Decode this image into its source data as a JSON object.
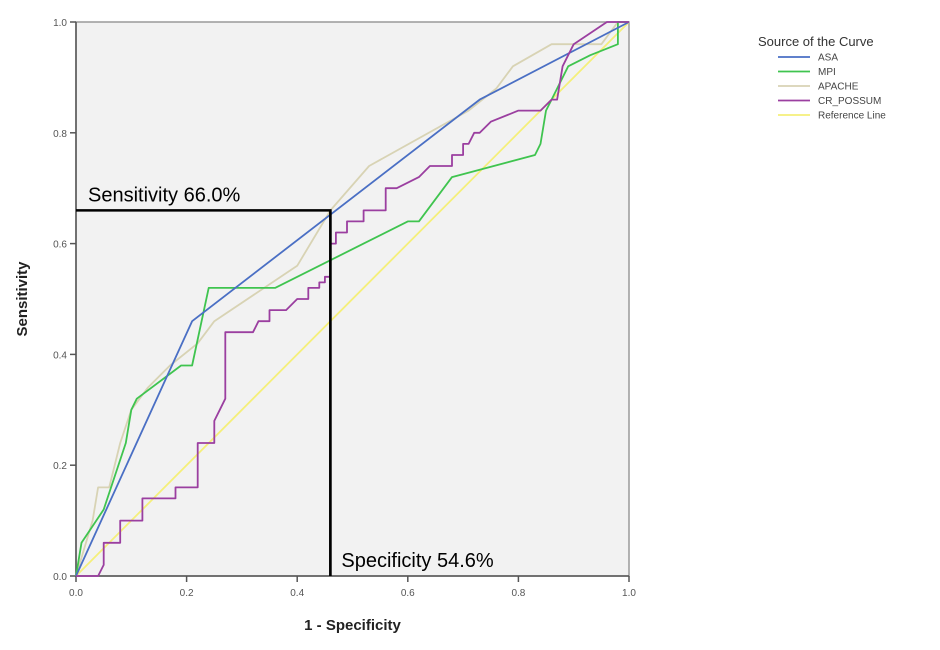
{
  "chart_data": {
    "type": "line",
    "title": "",
    "xlabel": "1 - Specificity",
    "ylabel": "Sensitivity",
    "xlim": [
      0,
      1
    ],
    "ylim": [
      0,
      1
    ],
    "xticks": [
      "0.0",
      "0.2",
      "0.4",
      "0.6",
      "0.8",
      "1.0"
    ],
    "yticks": [
      "0.0",
      "0.2",
      "0.4",
      "0.6",
      "0.8",
      "1.0"
    ],
    "grid": false,
    "legend": {
      "title": "Source of the Curve",
      "placement": "top-right-outside"
    },
    "series": [
      {
        "name": "ASA",
        "color": "#4a6fc4",
        "x": [
          0,
          0.21,
          0.73,
          1.0
        ],
        "y": [
          0,
          0.46,
          0.86,
          1.0
        ]
      },
      {
        "name": "MPI",
        "color": "#3fc44f",
        "x": [
          0,
          0.01,
          0.05,
          0.09,
          0.1,
          0.11,
          0.19,
          0.21,
          0.24,
          0.36,
          0.52,
          0.6,
          0.62,
          0.68,
          0.83,
          0.84,
          0.85,
          0.86,
          0.89,
          0.93,
          0.98,
          0.98,
          1.0
        ],
        "y": [
          0,
          0.06,
          0.12,
          0.24,
          0.3,
          0.32,
          0.38,
          0.38,
          0.52,
          0.52,
          0.6,
          0.64,
          0.64,
          0.72,
          0.76,
          0.78,
          0.84,
          0.86,
          0.92,
          0.94,
          0.96,
          1.0,
          1.0
        ]
      },
      {
        "name": "APACHE",
        "color": "#d8d3b4",
        "x": [
          0,
          0.03,
          0.04,
          0.06,
          0.08,
          0.1,
          0.13,
          0.17,
          0.22,
          0.25,
          0.4,
          0.46,
          0.53,
          0.71,
          0.76,
          0.79,
          0.86,
          0.95,
          0.98,
          1.0
        ],
        "y": [
          0,
          0.1,
          0.16,
          0.16,
          0.24,
          0.3,
          0.34,
          0.38,
          0.42,
          0.46,
          0.56,
          0.66,
          0.74,
          0.84,
          0.88,
          0.92,
          0.96,
          0.96,
          1.0,
          1.0
        ]
      },
      {
        "name": "CR_POSSUM",
        "color": "#9b3fa0",
        "x": [
          0,
          0.04,
          0.05,
          0.05,
          0.06,
          0.06,
          0.08,
          0.08,
          0.1,
          0.1,
          0.12,
          0.12,
          0.18,
          0.18,
          0.22,
          0.22,
          0.25,
          0.25,
          0.26,
          0.27,
          0.27,
          0.32,
          0.33,
          0.35,
          0.35,
          0.38,
          0.4,
          0.42,
          0.42,
          0.44,
          0.44,
          0.45,
          0.45,
          0.46,
          0.46,
          0.47,
          0.47,
          0.49,
          0.49,
          0.52,
          0.52,
          0.54,
          0.54,
          0.56,
          0.56,
          0.58,
          0.58,
          0.62,
          0.64,
          0.64,
          0.68,
          0.68,
          0.7,
          0.7,
          0.71,
          0.71,
          0.72,
          0.72,
          0.73,
          0.73,
          0.75,
          0.8,
          0.84,
          0.84,
          0.86,
          0.87,
          0.88,
          0.9,
          0.93,
          0.96,
          1.0
        ],
        "y": [
          0,
          0,
          0.02,
          0.06,
          0.06,
          0.06,
          0.06,
          0.1,
          0.1,
          0.1,
          0.1,
          0.14,
          0.14,
          0.16,
          0.16,
          0.24,
          0.24,
          0.28,
          0.3,
          0.32,
          0.44,
          0.44,
          0.46,
          0.46,
          0.48,
          0.48,
          0.5,
          0.5,
          0.52,
          0.52,
          0.53,
          0.53,
          0.54,
          0.54,
          0.6,
          0.6,
          0.62,
          0.62,
          0.64,
          0.64,
          0.66,
          0.66,
          0.66,
          0.66,
          0.7,
          0.7,
          0.7,
          0.72,
          0.74,
          0.74,
          0.74,
          0.76,
          0.76,
          0.78,
          0.78,
          0.78,
          0.8,
          0.8,
          0.8,
          0.8,
          0.82,
          0.84,
          0.84,
          0.84,
          0.86,
          0.86,
          0.92,
          0.96,
          0.98,
          1.0,
          1.0
        ]
      },
      {
        "name": "Reference Line",
        "color": "#f5ef7a",
        "x": [
          0,
          1.0
        ],
        "y": [
          0,
          1.0
        ]
      }
    ],
    "annotations": [
      {
        "text": "Sensitivity 66.0%",
        "type": "horizontal-guide",
        "y": 0.66,
        "x_end": 0.46
      },
      {
        "text": "Specificity 54.6%",
        "type": "vertical-guide",
        "x": 0.454,
        "y_end": 0.66
      }
    ]
  }
}
